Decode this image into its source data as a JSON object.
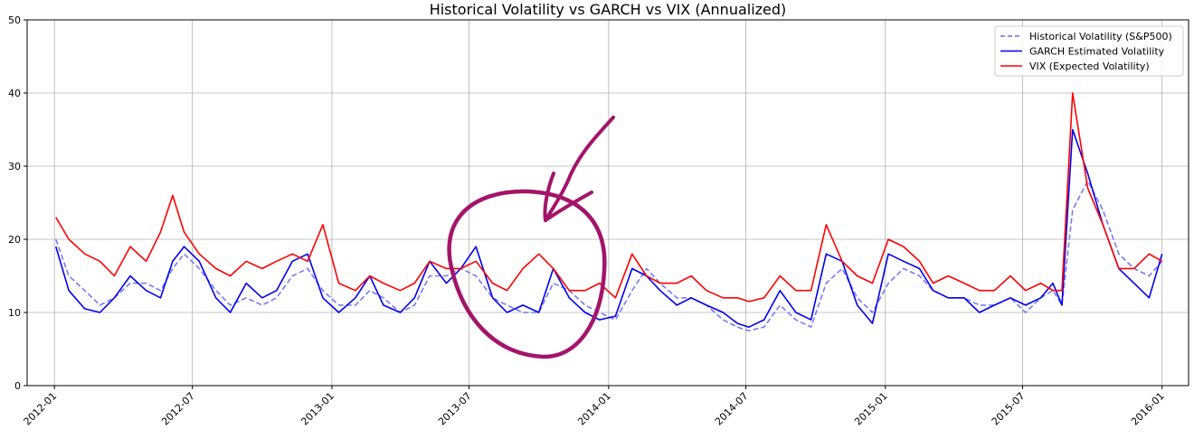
{
  "chart_data": {
    "type": "line",
    "title": "Historical Volatility vs GARCH vs VIX (Annualized)",
    "xlabel": "",
    "ylabel": "",
    "ylim": [
      0,
      50
    ],
    "yticks": [
      0,
      10,
      20,
      30,
      40,
      50
    ],
    "xlim": [
      "2011-11-26",
      "2016-02-05"
    ],
    "xticks": [
      "2012-01",
      "2012-07",
      "2013-01",
      "2013-07",
      "2014-01",
      "2014-07",
      "2015-01",
      "2015-07",
      "2016-01"
    ],
    "grid": true,
    "legend_position": "top-right",
    "colors": {
      "hist": "#6b6bf5",
      "garch": "#0000ee",
      "vix": "#ff0000",
      "annotation": "#a3146a"
    },
    "series": [
      {
        "name": "Historical Volatility (S&P500)",
        "style": "dashed",
        "x": [
          "2012-01-03",
          "2012-01-20",
          "2012-02-10",
          "2012-03-01",
          "2012-03-20",
          "2012-04-10",
          "2012-05-01",
          "2012-05-20",
          "2012-06-05",
          "2012-06-20",
          "2012-07-10",
          "2012-08-01",
          "2012-08-20",
          "2012-09-10",
          "2012-10-01",
          "2012-10-20",
          "2012-11-10",
          "2012-11-30",
          "2012-12-20",
          "2013-01-10",
          "2013-02-01",
          "2013-02-20",
          "2013-03-10",
          "2013-04-01",
          "2013-04-20",
          "2013-05-10",
          "2013-06-01",
          "2013-06-20",
          "2013-07-10",
          "2013-08-01",
          "2013-08-20",
          "2013-09-10",
          "2013-10-01",
          "2013-10-20",
          "2013-11-10",
          "2013-12-01",
          "2013-12-20",
          "2014-01-10",
          "2014-02-01",
          "2014-02-20",
          "2014-03-10",
          "2014-04-01",
          "2014-04-20",
          "2014-05-10",
          "2014-06-01",
          "2014-06-20",
          "2014-07-05",
          "2014-07-25",
          "2014-08-15",
          "2014-09-05",
          "2014-09-25",
          "2014-10-15",
          "2014-11-05",
          "2014-11-25",
          "2014-12-15",
          "2015-01-05",
          "2015-01-25",
          "2015-02-15",
          "2015-03-05",
          "2015-03-25",
          "2015-04-15",
          "2015-05-05",
          "2015-05-25",
          "2015-06-15",
          "2015-07-05",
          "2015-07-25",
          "2015-08-10",
          "2015-08-22",
          "2015-09-05",
          "2015-09-25",
          "2015-10-15",
          "2015-11-05",
          "2015-11-25",
          "2015-12-15",
          "2016-01-01"
        ],
        "values": [
          20,
          15,
          13,
          11,
          12,
          14,
          14,
          13,
          16,
          18,
          16,
          13,
          11,
          12,
          11,
          12,
          15,
          16,
          13,
          11,
          11,
          13,
          12,
          10,
          11,
          15,
          15,
          16,
          15,
          12,
          11,
          10,
          10,
          14,
          13,
          11,
          10,
          9,
          13,
          16,
          14,
          12,
          12,
          11,
          9,
          8,
          7.5,
          8,
          11,
          9,
          8,
          14,
          16,
          12,
          10,
          14,
          16,
          15,
          13,
          12,
          12,
          11,
          11,
          12,
          10,
          12,
          13,
          11,
          24,
          28,
          24,
          18,
          16,
          15,
          17
        ]
      },
      {
        "name": "GARCH Estimated Volatility",
        "style": "solid",
        "x": [
          "2012-01-03",
          "2012-01-20",
          "2012-02-10",
          "2012-03-01",
          "2012-03-20",
          "2012-04-10",
          "2012-05-01",
          "2012-05-20",
          "2012-06-05",
          "2012-06-20",
          "2012-07-10",
          "2012-08-01",
          "2012-08-20",
          "2012-09-10",
          "2012-10-01",
          "2012-10-20",
          "2012-11-10",
          "2012-11-30",
          "2012-12-20",
          "2013-01-10",
          "2013-02-01",
          "2013-02-20",
          "2013-03-10",
          "2013-04-01",
          "2013-04-20",
          "2013-05-10",
          "2013-06-01",
          "2013-06-20",
          "2013-07-10",
          "2013-08-01",
          "2013-08-20",
          "2013-09-10",
          "2013-10-01",
          "2013-10-20",
          "2013-11-10",
          "2013-12-01",
          "2013-12-20",
          "2014-01-10",
          "2014-02-01",
          "2014-02-20",
          "2014-03-10",
          "2014-04-01",
          "2014-04-20",
          "2014-05-10",
          "2014-06-01",
          "2014-06-20",
          "2014-07-05",
          "2014-07-25",
          "2014-08-15",
          "2014-09-05",
          "2014-09-25",
          "2014-10-15",
          "2014-11-05",
          "2014-11-25",
          "2014-12-15",
          "2015-01-05",
          "2015-01-25",
          "2015-02-15",
          "2015-03-05",
          "2015-03-25",
          "2015-04-15",
          "2015-05-05",
          "2015-05-25",
          "2015-06-15",
          "2015-07-05",
          "2015-07-25",
          "2015-08-10",
          "2015-08-22",
          "2015-09-05",
          "2015-09-25",
          "2015-10-15",
          "2015-11-05",
          "2015-11-25",
          "2015-12-15",
          "2016-01-01"
        ],
        "values": [
          19,
          13,
          10.5,
          10,
          12,
          15,
          13,
          12,
          17,
          19,
          17,
          12,
          10,
          14,
          12,
          13,
          17,
          18,
          12,
          10,
          12,
          15,
          11,
          10,
          12,
          17,
          14,
          16,
          19,
          12,
          10,
          11,
          10,
          16,
          12,
          10,
          9,
          9.5,
          16,
          15,
          13,
          11,
          12,
          11,
          10,
          8.5,
          8,
          9,
          13,
          10,
          9,
          18,
          17,
          11,
          8.5,
          18,
          17,
          16,
          13,
          12,
          12,
          10,
          11,
          12,
          11,
          12,
          14,
          11,
          35,
          29,
          22,
          16,
          14,
          12,
          18
        ]
      },
      {
        "name": "VIX (Expected Volatility)",
        "style": "solid",
        "x": [
          "2012-01-03",
          "2012-01-20",
          "2012-02-10",
          "2012-03-01",
          "2012-03-20",
          "2012-04-10",
          "2012-05-01",
          "2012-05-20",
          "2012-06-05",
          "2012-06-20",
          "2012-07-10",
          "2012-08-01",
          "2012-08-20",
          "2012-09-10",
          "2012-10-01",
          "2012-10-20",
          "2012-11-10",
          "2012-11-30",
          "2012-12-20",
          "2013-01-10",
          "2013-02-01",
          "2013-02-20",
          "2013-03-10",
          "2013-04-01",
          "2013-04-20",
          "2013-05-10",
          "2013-06-01",
          "2013-06-20",
          "2013-07-10",
          "2013-08-01",
          "2013-08-20",
          "2013-09-10",
          "2013-10-01",
          "2013-10-20",
          "2013-11-10",
          "2013-12-01",
          "2013-12-20",
          "2014-01-10",
          "2014-02-01",
          "2014-02-20",
          "2014-03-10",
          "2014-04-01",
          "2014-04-20",
          "2014-05-10",
          "2014-06-01",
          "2014-06-20",
          "2014-07-05",
          "2014-07-25",
          "2014-08-15",
          "2014-09-05",
          "2014-09-25",
          "2014-10-15",
          "2014-11-05",
          "2014-11-25",
          "2014-12-15",
          "2015-01-05",
          "2015-01-25",
          "2015-02-15",
          "2015-03-05",
          "2015-03-25",
          "2015-04-15",
          "2015-05-05",
          "2015-05-25",
          "2015-06-15",
          "2015-07-05",
          "2015-07-25",
          "2015-08-10",
          "2015-08-22",
          "2015-09-05",
          "2015-09-25",
          "2015-10-15",
          "2015-11-05",
          "2015-11-25",
          "2015-12-15",
          "2016-01-01"
        ],
        "values": [
          23,
          20,
          18,
          17,
          15,
          19,
          17,
          21,
          26,
          21,
          18,
          16,
          15,
          17,
          16,
          17,
          18,
          17,
          22,
          14,
          13,
          15,
          14,
          13,
          14,
          17,
          16,
          16,
          17,
          14,
          13,
          16,
          18,
          16,
          13,
          13,
          14,
          12,
          18,
          15,
          14,
          14,
          15,
          13,
          12,
          12,
          11.5,
          12,
          15,
          13,
          13,
          22,
          17,
          15,
          14,
          20,
          19,
          17,
          14,
          15,
          14,
          13,
          13,
          15,
          13,
          14,
          13,
          13,
          40,
          27,
          22,
          16,
          16,
          18,
          17
        ]
      }
    ]
  },
  "annotations": [
    {
      "type": "hand-drawn-circle",
      "color": "annotation"
    },
    {
      "type": "hand-drawn-arrow",
      "color": "annotation"
    }
  ]
}
